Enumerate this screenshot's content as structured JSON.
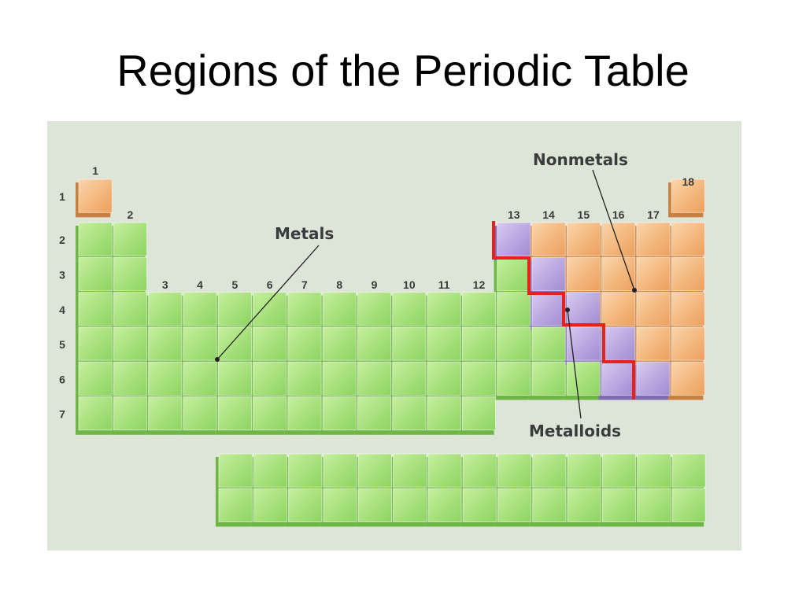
{
  "slide": {
    "title": "Regions of the Periodic Table"
  },
  "diagram": {
    "labels": {
      "metals": "Metals",
      "nonmetals": "Nonmetals",
      "metalloids": "Metalloids"
    },
    "group_numbers": [
      "1",
      "2",
      "3",
      "4",
      "5",
      "6",
      "7",
      "8",
      "9",
      "10",
      "11",
      "12",
      "13",
      "14",
      "15",
      "16",
      "17",
      "18"
    ],
    "period_numbers": [
      "1",
      "2",
      "3",
      "4",
      "5",
      "6",
      "7"
    ],
    "colors": {
      "background": "#dde5d9",
      "metal": "#9fdc74",
      "metal_light": "#c7ef9f",
      "nonmetal": "#f2b57a",
      "nonmetal_light": "#fad6ad",
      "metalloid": "#b8a4df",
      "metalloid_light": "#d8cbf0",
      "staircase": "#e8211d",
      "pointer": "#222222"
    },
    "metalloid_cells": [
      [
        2,
        13
      ],
      [
        3,
        14
      ],
      [
        4,
        14
      ],
      [
        4,
        15
      ],
      [
        5,
        15
      ],
      [
        5,
        16
      ],
      [
        6,
        16
      ],
      [
        6,
        17
      ]
    ],
    "nonmetal_cells": [
      [
        1,
        1
      ],
      [
        1,
        18
      ],
      [
        2,
        14
      ],
      [
        2,
        15
      ],
      [
        2,
        16
      ],
      [
        2,
        17
      ],
      [
        2,
        18
      ],
      [
        3,
        15
      ],
      [
        3,
        16
      ],
      [
        3,
        17
      ],
      [
        3,
        18
      ],
      [
        4,
        16
      ],
      [
        4,
        17
      ],
      [
        4,
        18
      ],
      [
        5,
        17
      ],
      [
        5,
        18
      ],
      [
        6,
        18
      ]
    ],
    "f_block": {
      "rows": 2,
      "columns": 14
    }
  }
}
